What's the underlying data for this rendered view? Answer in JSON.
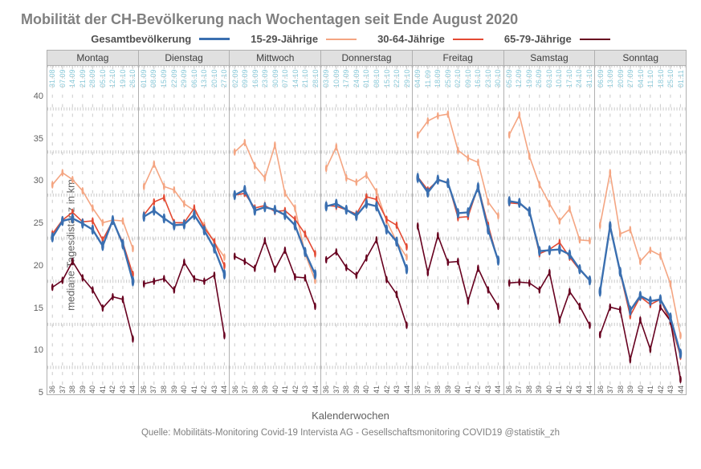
{
  "title": "Mobilität der CH-Bevölkerung nach Wochentagen seit Ende August 2020",
  "ylabel": "mediane Tagesdistanz in km",
  "xlabel": "Kalenderwochen",
  "caption": "Quelle: Mobilitäts-Monitoring Covid-19 Intervista AG - Gesellschaftsmonitoring COVID19 @statistik_zh",
  "ylim": [
    3,
    40
  ],
  "yticks": [
    5,
    10,
    15,
    20,
    25,
    30,
    35,
    40
  ],
  "weeks": [
    36,
    37,
    38,
    39,
    40,
    41,
    42,
    43,
    44
  ],
  "legend": [
    {
      "label": "Gesamtbevölkerung",
      "color": "#3a6fb0",
      "width": 3
    },
    {
      "label": "15-29-Jährige",
      "color": "#f4a582",
      "width": 2
    },
    {
      "label": "30-64-Jährige",
      "color": "#e34a33",
      "width": 2
    },
    {
      "label": "65-79-Jährige",
      "color": "#67001f",
      "width": 2
    }
  ],
  "colors": {
    "total": "#3a6fb0",
    "young": "#f4a582",
    "mid": "#e34a33",
    "old": "#67001f",
    "date": "#88c8d8",
    "bg": "#ffffff",
    "grid": "#d0d0d0",
    "strip": "#e0e0e0"
  },
  "panels": [
    {
      "name": "Montag",
      "dates": [
        "31.08",
        "07.09",
        "14.09",
        "21.09",
        "28.09",
        "05.10",
        "12.10",
        "19.10",
        "26.10"
      ],
      "series": {
        "total": [
          20.1,
          22.0,
          22.3,
          21.7,
          21.0,
          19.1,
          22.1,
          19.3,
          15.0
        ],
        "young": [
          26.2,
          27.6,
          26.8,
          25.5,
          23.5,
          21.8,
          22.1,
          22.0,
          18.8
        ],
        "mid": [
          20.5,
          22.1,
          23.0,
          21.9,
          22.0,
          19.8,
          22.0,
          19.5,
          15.8
        ],
        "old": [
          14.3,
          15.1,
          17.3,
          15.4,
          14.0,
          11.9,
          13.2,
          12.9,
          8.3
        ]
      }
    },
    {
      "name": "Dienstag",
      "dates": [
        "01.09",
        "08.09",
        "15.09",
        "22.09",
        "29.09",
        "06.10",
        "13.10",
        "20.10",
        "27.10"
      ],
      "series": {
        "total": [
          22.5,
          23.2,
          22.3,
          21.5,
          21.6,
          22.7,
          20.9,
          18.8,
          15.8
        ],
        "young": [
          26.0,
          28.6,
          26.0,
          25.6,
          24.0,
          23.2,
          21.5,
          19.5,
          17.8
        ],
        "mid": [
          22.7,
          24.2,
          24.7,
          21.8,
          21.8,
          23.5,
          21.2,
          19.6,
          16.8
        ],
        "old": [
          14.7,
          15.0,
          15.3,
          14.0,
          17.2,
          15.3,
          15.0,
          15.7,
          8.7
        ]
      }
    },
    {
      "name": "Mittwoch",
      "dates": [
        "02.09",
        "09.09",
        "16.09",
        "23.09",
        "30.09",
        "07.10",
        "14.10",
        "21.10",
        "28.10"
      ],
      "series": {
        "total": [
          25.0,
          25.6,
          23.2,
          23.6,
          23.3,
          22.7,
          21.5,
          18.4,
          15.8
        ],
        "young": [
          30.0,
          31.1,
          28.4,
          27.0,
          30.8,
          25.2,
          23.5,
          18.2,
          15.1
        ],
        "mid": [
          25.0,
          25.2,
          23.5,
          23.8,
          23.1,
          23.2,
          22.2,
          20.5,
          18.2
        ],
        "old": [
          17.9,
          17.3,
          16.5,
          19.7,
          16.4,
          18.6,
          15.5,
          15.4,
          12.1
        ]
      }
    },
    {
      "name": "Donnerstag",
      "dates": [
        "03.09",
        "10.09",
        "17.09",
        "24.09",
        "01.10",
        "08.10",
        "15.10",
        "22.10",
        "29.10"
      ],
      "series": {
        "total": [
          23.7,
          24.0,
          23.3,
          22.6,
          24.0,
          23.7,
          21.0,
          19.6,
          16.4
        ],
        "young": [
          28.1,
          30.6,
          27.0,
          26.5,
          27.3,
          25.4,
          22.0,
          19.6,
          17.8
        ],
        "mid": [
          23.8,
          23.7,
          23.3,
          22.8,
          24.8,
          24.5,
          22.2,
          21.5,
          19.0
        ],
        "old": [
          17.5,
          18.4,
          16.6,
          15.7,
          17.7,
          19.8,
          15.2,
          13.5,
          9.9
        ]
      }
    },
    {
      "name": "Freitag",
      "dates": [
        "04.09",
        "11.09",
        "18.09",
        "25.09",
        "02.10",
        "09.10",
        "16.10",
        "23.10",
        "30.10"
      ],
      "series": {
        "total": [
          27.0,
          25.3,
          26.8,
          26.4,
          22.9,
          23.0,
          25.9,
          21.0,
          17.4
        ],
        "young": [
          32.0,
          33.6,
          34.2,
          34.4,
          30.2,
          29.3,
          28.8,
          24.2,
          22.6
        ],
        "mid": [
          27.1,
          25.6,
          26.7,
          26.5,
          22.4,
          22.5,
          26.0,
          21.5,
          17.3
        ],
        "old": [
          21.4,
          16.0,
          20.3,
          17.2,
          17.3,
          12.7,
          16.5,
          14.0,
          12.1
        ]
      }
    },
    {
      "name": "Samstag",
      "dates": [
        "05.09",
        "12.09",
        "19.09",
        "26.09",
        "03.10",
        "10.10",
        "17.10",
        "24.10",
        "31.10"
      ],
      "series": {
        "total": [
          24.3,
          24.1,
          23.1,
          18.5,
          18.6,
          18.7,
          18.1,
          16.4,
          15.1
        ],
        "young": [
          32.0,
          34.3,
          29.5,
          26.2,
          24.0,
          22.0,
          23.4,
          19.8,
          19.7
        ],
        "mid": [
          24.1,
          24.0,
          23.2,
          18.2,
          18.7,
          19.5,
          17.8,
          16.3,
          15.2
        ],
        "old": [
          14.8,
          14.9,
          14.8,
          14.0,
          16.0,
          10.5,
          13.8,
          12.1,
          9.9
        ]
      }
    },
    {
      "name": "Sonntag",
      "dates": [
        "06.09",
        "13.09",
        "20.09",
        "27.09",
        "04.10",
        "11.10",
        "18.10",
        "25.10",
        "01.11"
      ],
      "series": {
        "total": [
          13.8,
          21.4,
          16.1,
          11.6,
          13.3,
          12.7,
          12.9,
          10.8,
          6.6
        ],
        "young": [
          21.5,
          27.6,
          20.5,
          21.0,
          17.3,
          18.6,
          18.0,
          14.7,
          8.7
        ],
        "mid": [
          13.8,
          21.5,
          16.0,
          11.0,
          13.2,
          12.3,
          12.9,
          10.3,
          6.3
        ],
        "old": [
          8.8,
          12.0,
          11.7,
          5.9,
          10.5,
          7.1,
          12.0,
          10.4,
          3.6
        ]
      }
    }
  ]
}
